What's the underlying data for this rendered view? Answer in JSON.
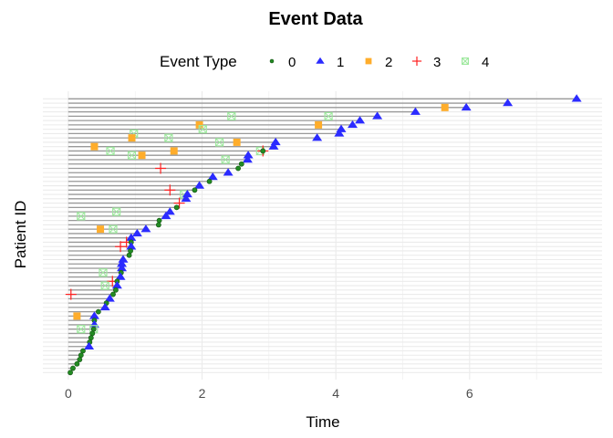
{
  "chart_data": {
    "type": "scatter",
    "title": "Event Data",
    "xlabel": "Time",
    "ylabel": "Patient ID",
    "xlim": [
      -0.38,
      7.98
    ],
    "xticks": [
      "0",
      "2",
      "4",
      "6"
    ],
    "grid": true,
    "legend": {
      "title": "Event Type",
      "placement": "top",
      "entries": [
        {
          "label": "0",
          "shape": "circle",
          "color": "#228B22"
        },
        {
          "label": "1",
          "shape": "triangle",
          "color": "#2b2bff"
        },
        {
          "label": "2",
          "shape": "square",
          "color": "#ffad2b"
        },
        {
          "label": "3",
          "shape": "plus",
          "color": "#ff2020"
        },
        {
          "label": "4",
          "shape": "boxed-x",
          "color": "#9ee89e"
        }
      ]
    },
    "segment_color": "#999999",
    "rows_top_to_bottom": [
      [
        [
          7.6,
          1
        ]
      ],
      [
        [
          6.57,
          1
        ]
      ],
      [
        [
          5.63,
          2
        ],
        [
          5.95,
          1
        ]
      ],
      [
        [
          5.19,
          1
        ]
      ],
      [
        [
          2.44,
          4
        ],
        [
          3.89,
          4
        ],
        [
          4.62,
          1
        ]
      ],
      [
        [
          4.36,
          1
        ]
      ],
      [
        [
          1.96,
          2
        ],
        [
          3.74,
          2
        ],
        [
          4.25,
          1
        ]
      ],
      [
        [
          2.01,
          4
        ],
        [
          4.08,
          1
        ]
      ],
      [
        [
          0.98,
          4
        ],
        [
          4.05,
          1
        ]
      ],
      [
        [
          0.95,
          2
        ],
        [
          1.5,
          4
        ],
        [
          3.72,
          1
        ]
      ],
      [
        [
          2.26,
          4
        ],
        [
          2.52,
          2
        ],
        [
          3.1,
          1
        ]
      ],
      [
        [
          0.39,
          2
        ],
        [
          3.07,
          1
        ]
      ],
      [
        [
          0.63,
          4
        ],
        [
          1.58,
          2
        ],
        [
          2.87,
          4
        ],
        [
          2.91,
          3
        ],
        [
          2.91,
          0
        ]
      ],
      [
        [
          0.95,
          4
        ],
        [
          1.1,
          2
        ],
        [
          2.69,
          1
        ]
      ],
      [
        [
          2.35,
          4
        ],
        [
          2.68,
          1
        ]
      ],
      [
        [
          2.59,
          0
        ]
      ],
      [
        [
          1.38,
          3
        ],
        [
          2.54,
          0
        ]
      ],
      [
        [
          2.39,
          1
        ]
      ],
      [
        [
          2.16,
          1
        ]
      ],
      [
        [
          2.11,
          0
        ]
      ],
      [
        [
          1.96,
          1
        ]
      ],
      [
        [
          1.52,
          3
        ],
        [
          1.89,
          0
        ]
      ],
      [
        [
          1.73,
          4
        ],
        [
          1.78,
          1
        ]
      ],
      [
        [
          1.76,
          1
        ]
      ],
      [
        [
          1.66,
          3
        ]
      ],
      [
        [
          1.62,
          0
        ]
      ],
      [
        [
          0.72,
          4
        ],
        [
          1.52,
          1
        ]
      ],
      [
        [
          0.19,
          4
        ],
        [
          1.46,
          1
        ]
      ],
      [
        [
          1.36,
          0
        ]
      ],
      [
        [
          1.35,
          0
        ]
      ],
      [
        [
          0.48,
          2
        ],
        [
          0.67,
          4
        ],
        [
          1.16,
          1
        ]
      ],
      [
        [
          1.03,
          1
        ]
      ],
      [
        [
          0.94,
          1
        ]
      ],
      [
        [
          0.87,
          3
        ],
        [
          0.94,
          0
        ]
      ],
      [
        [
          0.78,
          3
        ],
        [
          0.94,
          1
        ]
      ],
      [
        [
          0.93,
          0
        ]
      ],
      [
        [
          0.91,
          0
        ]
      ],
      [
        [
          0.82,
          1
        ]
      ],
      [
        [
          0.8,
          1
        ]
      ],
      [
        [
          0.8,
          1
        ]
      ],
      [
        [
          0.52,
          4
        ],
        [
          0.79,
          0
        ]
      ],
      [
        [
          0.78,
          1
        ]
      ],
      [
        [
          0.66,
          3
        ],
        [
          0.73,
          0
        ]
      ],
      [
        [
          0.55,
          4
        ],
        [
          0.73,
          1
        ]
      ],
      [
        [
          0.71,
          0
        ]
      ],
      [
        [
          0.04,
          3
        ],
        [
          0.67,
          0
        ]
      ],
      [
        [
          0.62,
          1
        ]
      ],
      [
        [
          0.57,
          0
        ]
      ],
      [
        [
          0.55,
          1
        ]
      ],
      [
        [
          0.45,
          0
        ]
      ],
      [
        [
          0.13,
          2
        ],
        [
          0.39,
          1
        ]
      ],
      [
        [
          0.39,
          0
        ]
      ],
      [
        [
          0.39,
          1
        ]
      ],
      [
        [
          0.19,
          4
        ],
        [
          0.38,
          4
        ],
        [
          0.38,
          0
        ]
      ],
      [
        [
          0.36,
          0
        ]
      ],
      [
        [
          0.34,
          0
        ]
      ],
      [
        [
          0.32,
          0
        ]
      ],
      [
        [
          0.31,
          1
        ]
      ],
      [
        [
          0.22,
          0
        ]
      ],
      [
        [
          0.19,
          0
        ]
      ],
      [
        [
          0.17,
          0
        ]
      ],
      [
        [
          0.13,
          0
        ]
      ],
      [
        [
          0.07,
          0
        ]
      ],
      [
        [
          0.03,
          0
        ]
      ]
    ]
  }
}
